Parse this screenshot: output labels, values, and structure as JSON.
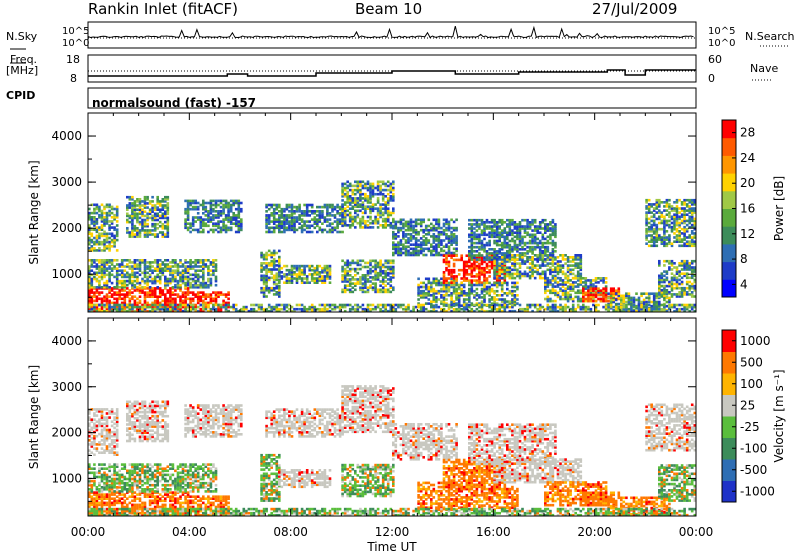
{
  "header": {
    "station_title": "Rankin Inlet (fitACF)",
    "beam": "Beam 10",
    "date": "27/Jul/2009"
  },
  "top_panels": {
    "nsky_label": "N.Sky",
    "nsky_ticks": [
      "10^5",
      "10^0"
    ],
    "nsearch_label": "N.Search",
    "nsearch_ticks": [
      "10^5",
      "10^0"
    ],
    "freq_label_1": "Freq.",
    "freq_label_2": "[MHz]",
    "freq_ticks": [
      "18",
      "8"
    ],
    "nave_label": "Nave",
    "nave_ticks": [
      "60",
      "0"
    ],
    "cpid_label": "CPID",
    "cpid_value": "normalsound (fast) -157"
  },
  "chart_data": [
    {
      "type": "heatmap",
      "name": "power",
      "ylabel": "Slant Range [km]",
      "xlabel": "Time UT",
      "x_ticks": [
        "00:00",
        "04:00",
        "08:00",
        "12:00",
        "16:00",
        "20:00",
        "00:00"
      ],
      "xlim_hours": [
        0,
        24
      ],
      "y_ticks": [
        1000,
        2000,
        3000,
        4000
      ],
      "ylim": [
        180,
        4500
      ],
      "colorbar_label": "Power [dB]",
      "colorbar_ticks": [
        "28",
        "24",
        "20",
        "16",
        "12",
        "8",
        "4"
      ],
      "colors": [
        "#0000ff",
        "#1e3cc8",
        "#2e6eb4",
        "#3c8c5a",
        "#5aaa3c",
        "#a0c846",
        "#ffd200",
        "#ff9600",
        "#ff5a00",
        "#ff0000"
      ]
    },
    {
      "type": "heatmap",
      "name": "velocity",
      "ylabel": "Slant Range [km]",
      "xlabel": "Time UT",
      "x_ticks": [
        "00:00",
        "04:00",
        "08:00",
        "12:00",
        "16:00",
        "20:00",
        "00:00"
      ],
      "xlim_hours": [
        0,
        24
      ],
      "y_ticks": [
        1000,
        2000,
        3000,
        4000
      ],
      "ylim": [
        180,
        4500
      ],
      "colorbar_label": "Velocity [m s⁻¹]",
      "colorbar_ticks": [
        "1000",
        "500",
        "100",
        "25",
        "-25",
        "-100",
        "-500",
        "-1000"
      ],
      "colors": [
        "#1e32c8",
        "#2e6eb4",
        "#3c8c5a",
        "#5abe3c",
        "#c8c8c0",
        "#ffb400",
        "#ff7800",
        "#ff0000"
      ]
    }
  ],
  "regions": [
    {
      "t0": 0.0,
      "t1": 4.0,
      "r0": 180,
      "r1": 700,
      "p": "high",
      "v": "neg"
    },
    {
      "t0": 4.0,
      "t1": 5.5,
      "r0": 180,
      "r1": 600,
      "p": "high",
      "v": "neg"
    },
    {
      "t0": 0.0,
      "t1": 5.0,
      "r0": 700,
      "r1": 1300,
      "p": "mid",
      "v": "mixgreen"
    },
    {
      "t0": 0.0,
      "t1": 1.2,
      "r0": 1500,
      "r1": 2500,
      "p": "mid",
      "v": "gray"
    },
    {
      "t0": 1.5,
      "t1": 3.2,
      "r0": 1800,
      "r1": 2700,
      "p": "mid",
      "v": "gray"
    },
    {
      "t0": 3.8,
      "t1": 6.0,
      "r0": 1900,
      "r1": 2600,
      "p": "low",
      "v": "gray"
    },
    {
      "t0": 6.8,
      "t1": 7.5,
      "r0": 500,
      "r1": 1500,
      "p": "mid",
      "v": "mixgreen"
    },
    {
      "t0": 7.5,
      "t1": 9.5,
      "r0": 800,
      "r1": 1200,
      "p": "mid",
      "v": "gray"
    },
    {
      "t0": 7.0,
      "t1": 10.0,
      "r0": 1900,
      "r1": 2500,
      "p": "low",
      "v": "gray"
    },
    {
      "t0": 10.0,
      "t1": 12.0,
      "r0": 2000,
      "r1": 3000,
      "p": "mid",
      "v": "gray"
    },
    {
      "t0": 10.0,
      "t1": 12.0,
      "r0": 600,
      "r1": 1300,
      "p": "mid",
      "v": "mixgreen"
    },
    {
      "t0": 12.0,
      "t1": 14.5,
      "r0": 1400,
      "r1": 2200,
      "p": "low",
      "v": "gray"
    },
    {
      "t0": 13.0,
      "t1": 14.5,
      "r0": 300,
      "r1": 900,
      "p": "mid",
      "v": "neg"
    },
    {
      "t0": 14.0,
      "t1": 16.5,
      "r0": 800,
      "r1": 1400,
      "p": "high",
      "v": "neg"
    },
    {
      "t0": 14.5,
      "t1": 17.0,
      "r0": 300,
      "r1": 800,
      "p": "mid",
      "v": "neg"
    },
    {
      "t0": 15.0,
      "t1": 18.5,
      "r0": 1300,
      "r1": 2200,
      "p": "low",
      "v": "gray"
    },
    {
      "t0": 16.0,
      "t1": 19.5,
      "r0": 900,
      "r1": 1400,
      "p": "mid",
      "v": "gray"
    },
    {
      "t0": 18.0,
      "t1": 20.5,
      "r0": 400,
      "r1": 900,
      "p": "mid",
      "v": "neg"
    },
    {
      "t0": 19.5,
      "t1": 21.0,
      "r0": 400,
      "r1": 700,
      "p": "high",
      "v": "neg"
    },
    {
      "t0": 20.5,
      "t1": 23.0,
      "r0": 200,
      "r1": 600,
      "p": "mid",
      "v": "neg"
    },
    {
      "t0": 22.0,
      "t1": 24.0,
      "r0": 1600,
      "r1": 2600,
      "p": "mid",
      "v": "gray"
    },
    {
      "t0": 22.5,
      "t1": 24.0,
      "r0": 500,
      "r1": 1300,
      "p": "mid",
      "v": "mixgreen"
    },
    {
      "t0": 0.0,
      "t1": 24.0,
      "r0": 180,
      "r1": 350,
      "p": "mid",
      "v": "mixgreen"
    }
  ]
}
